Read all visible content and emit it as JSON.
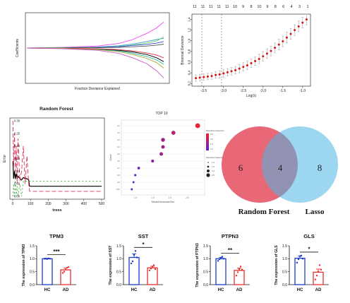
{
  "chart_data": [
    {
      "id": "lasso_coef",
      "type": "line",
      "xlabel": "Fraction Deviance Explained",
      "ylabel": "Coefficients",
      "xlim": [
        0,
        1
      ],
      "ylim": [
        -1,
        1
      ],
      "series": [
        {
          "color": "#ee44ee",
          "x": [
            0,
            0.25,
            0.5,
            0.65,
            0.75,
            0.85,
            0.92,
            0.97
          ],
          "y": [
            0,
            0.02,
            0.06,
            0.14,
            0.26,
            0.45,
            0.62,
            0.8
          ]
        },
        {
          "color": "#3aa0c8",
          "x": [
            0,
            0.25,
            0.5,
            0.65,
            0.75,
            0.85,
            0.92,
            0.97
          ],
          "y": [
            0,
            0.01,
            0.03,
            0.07,
            0.12,
            0.2,
            0.26,
            0.3
          ]
        },
        {
          "color": "#6ad06a",
          "x": [
            0,
            0.25,
            0.5,
            0.65,
            0.75,
            0.85,
            0.92,
            0.97
          ],
          "y": [
            0,
            0.01,
            0.02,
            0.05,
            0.09,
            0.15,
            0.22,
            0.34
          ]
        },
        {
          "color": "#2d4ad8",
          "x": [
            0,
            0.25,
            0.5,
            0.65,
            0.75,
            0.85,
            0.92,
            0.97
          ],
          "y": [
            0,
            0,
            0.02,
            0.04,
            0.08,
            0.11,
            0.15,
            0.2
          ]
        },
        {
          "color": "#555555",
          "x": [
            0,
            0.25,
            0.5,
            0.65,
            0.75,
            0.85,
            0.92,
            0.97
          ],
          "y": [
            0,
            0,
            0.01,
            0.02,
            0.04,
            0.06,
            0.09,
            0.12
          ]
        },
        {
          "color": "#000000",
          "x": [
            0,
            0.25,
            0.5,
            0.65,
            0.75,
            0.85,
            0.92,
            0.97
          ],
          "y": [
            0,
            -0.01,
            -0.03,
            -0.07,
            -0.12,
            -0.2,
            -0.3,
            -0.42
          ]
        },
        {
          "color": "#20b0a0",
          "x": [
            0,
            0.25,
            0.5,
            0.65,
            0.75,
            0.85,
            0.92,
            0.97
          ],
          "y": [
            0,
            -0.01,
            -0.04,
            -0.09,
            -0.16,
            -0.26,
            -0.37,
            -0.5
          ]
        },
        {
          "color": "#dd3344",
          "x": [
            0,
            0.25,
            0.5,
            0.65,
            0.75,
            0.85,
            0.92,
            0.97
          ],
          "y": [
            0,
            -0.01,
            -0.02,
            -0.05,
            -0.09,
            -0.15,
            -0.22,
            -0.3
          ]
        },
        {
          "color": "#aaaa33",
          "x": [
            0,
            0.25,
            0.5,
            0.65,
            0.75,
            0.85,
            0.92,
            0.97
          ],
          "y": [
            0,
            -0.01,
            -0.05,
            -0.11,
            -0.2,
            -0.32,
            -0.45,
            -0.62
          ]
        },
        {
          "color": "#cc55cc",
          "x": [
            0,
            0.25,
            0.5,
            0.65,
            0.75,
            0.85,
            0.92,
            0.97
          ],
          "y": [
            0,
            -0.02,
            -0.07,
            -0.16,
            -0.3,
            -0.48,
            -0.7,
            -0.92
          ]
        }
      ]
    },
    {
      "id": "lasso_cv",
      "type": "scatter",
      "xlabel": "Log(λ)",
      "ylabel": "Binomial Deviance",
      "xlim": [
        -3.8,
        -0.8
      ],
      "ylim": [
        0.15,
        1.5
      ],
      "x_ticks": [
        -3.5,
        -3.0,
        -2.5,
        -2.0,
        -1.5,
        -1.0
      ],
      "x_tick_labels": [
        "-3.5",
        "-3.0",
        "-2.5",
        "-2.0",
        "-1.5",
        "-1.0"
      ],
      "y_ticks": [
        0.2,
        0.4,
        0.6,
        0.8,
        1.0,
        1.2,
        1.4
      ],
      "y_tick_labels": [
        "0.2",
        "0.4",
        "0.6",
        "0.8",
        "1.0",
        "1.2",
        "1.4"
      ],
      "top_axis_labels": [
        "11",
        "11",
        "11",
        "11",
        "11",
        "10",
        "9",
        "8",
        "10",
        "9",
        "8",
        "6",
        "4",
        "3",
        "1"
      ],
      "vlines": [
        -3.55,
        -3.05
      ],
      "x": [
        -3.7,
        -3.6,
        -3.5,
        -3.4,
        -3.3,
        -3.2,
        -3.1,
        -3.0,
        -2.9,
        -2.8,
        -2.7,
        -2.6,
        -2.5,
        -2.4,
        -2.3,
        -2.2,
        -2.1,
        -2.0,
        -1.9,
        -1.8,
        -1.7,
        -1.6,
        -1.5,
        -1.4,
        -1.3,
        -1.2,
        -1.1,
        -1.0,
        -0.9
      ],
      "y": [
        0.3,
        0.31,
        0.32,
        0.33,
        0.34,
        0.36,
        0.37,
        0.39,
        0.41,
        0.43,
        0.45,
        0.48,
        0.51,
        0.54,
        0.58,
        0.62,
        0.66,
        0.71,
        0.76,
        0.81,
        0.87,
        0.93,
        0.99,
        1.06,
        1.13,
        1.2,
        1.27,
        1.34,
        1.4
      ],
      "err": [
        0.06,
        0.06,
        0.06,
        0.06,
        0.06,
        0.06,
        0.07,
        0.07,
        0.07,
        0.07,
        0.07,
        0.08,
        0.08,
        0.08,
        0.08,
        0.08,
        0.09,
        0.09,
        0.09,
        0.09,
        0.09,
        0.1,
        0.1,
        0.1,
        0.1,
        0.1,
        0.1,
        0.1,
        0.1
      ]
    },
    {
      "id": "random_forest",
      "type": "line",
      "title": "Random Forest",
      "xlabel": "trees",
      "ylabel": "Error",
      "xlim": [
        0,
        500
      ],
      "ylim": [
        0,
        0.3
      ],
      "x_ticks": [
        0,
        100,
        200,
        300,
        400,
        500
      ],
      "x_tick_labels": [
        "0",
        "100",
        "200",
        "300",
        "400",
        "500"
      ],
      "y_ticks": [
        0,
        0.05,
        0.1,
        0.15,
        0.2,
        0.25,
        0.3
      ],
      "y_tick_labels": [
        "0.00",
        "0.05",
        "0.10",
        "0.15",
        "0.20",
        "0.25",
        "0.30"
      ],
      "series": [
        {
          "color": "#000000",
          "dash": "",
          "x": [
            1,
            5,
            10,
            15,
            20,
            25,
            30,
            40,
            50,
            60,
            70,
            80,
            90,
            95,
            100,
            500
          ],
          "y": [
            0.14,
            0.07,
            0.1,
            0.07,
            0.09,
            0.07,
            0.08,
            0.07,
            0.065,
            0.075,
            0.07,
            0.07,
            0.065,
            0.04,
            0.04,
            0.04
          ]
        },
        {
          "color": "#dd3355",
          "dash": "6,3",
          "x": [
            1,
            5,
            10,
            15,
            20,
            25,
            30,
            40,
            50,
            60,
            70,
            80,
            90,
            95,
            100,
            500
          ],
          "y": [
            0.3,
            0.12,
            0.25,
            0.1,
            0.2,
            0.05,
            0.23,
            0.06,
            0.1,
            0.2,
            0.05,
            0.16,
            0.05,
            0.02,
            0.02,
            0.02
          ]
        },
        {
          "color": "#44aa44",
          "dash": "2,3",
          "x": [
            1,
            5,
            10,
            15,
            20,
            25,
            30,
            40,
            50,
            60,
            70,
            80,
            90,
            100,
            500
          ],
          "y": [
            0.0,
            0.05,
            0.0,
            0.07,
            0.0,
            0.04,
            0.0,
            0.05,
            0.0,
            0.06,
            0.06,
            0.06,
            0.06,
            0.06,
            0.06
          ]
        }
      ]
    },
    {
      "id": "top10",
      "type": "scatter",
      "title": "TOP 10",
      "xlabel": "MeanDecreaseGini",
      "ylabel": "Gene",
      "categories": [
        "G10",
        "G9",
        "G8",
        "G7",
        "G6",
        "G5",
        "G4",
        "G3",
        "G2",
        "G1"
      ],
      "x": [
        0.9,
        0.95,
        1.0,
        1.1,
        1.5,
        1.75,
        1.8,
        1.8,
        2.1,
        2.8
      ],
      "size": [
        0.5,
        0.5,
        0.6,
        0.8,
        1.0,
        1.3,
        1.3,
        1.5,
        1.6,
        2.0
      ],
      "legend_color_title": "MeanDecreaseGini",
      "legend_size_title": "MeanDecreaseGini",
      "xlim": [
        0.6,
        3.0
      ],
      "x_ticks": [
        1.0,
        1.5,
        2.0,
        2.5
      ],
      "x_tick_labels": [
        "1.0",
        "1.5",
        "2.0",
        "2.5"
      ],
      "size_legend_labels": [
        "1.0",
        "1.5",
        "2.0",
        "2.5"
      ],
      "color_legend_labels": [
        "2.5",
        "2.0",
        "1.5",
        "1.0"
      ],
      "colors": {
        "high": "#ee2233",
        "low": "#5522cc"
      }
    },
    {
      "id": "venn",
      "type": "venn",
      "sets": [
        {
          "name": "Random Forest",
          "unique": 6,
          "color": "#e86070"
        },
        {
          "name": "Lasso",
          "unique": 8,
          "color": "#4ab4e6"
        }
      ],
      "intersection": 4
    },
    {
      "id": "tpm3",
      "type": "bar",
      "title": "TPM3",
      "ylabel": "The expression of TPM3",
      "categories": [
        "HC",
        "AD"
      ],
      "values": [
        1.0,
        0.57
      ],
      "errors": [
        0.02,
        0.07
      ],
      "points": [
        [
          1.0,
          1.0,
          0.99,
          1.01,
          1.0
        ],
        [
          0.45,
          0.5,
          0.58,
          0.65,
          0.68
        ]
      ],
      "ylim": [
        0,
        1.5
      ],
      "y_ticks": [
        0.0,
        0.5,
        1.0,
        1.5
      ],
      "y_tick_labels": [
        "0.0",
        "0.5",
        "1.0",
        "1.5"
      ],
      "significance": "***",
      "colors": {
        "HC": "#1a3cc8",
        "AD": "#e83030"
      }
    },
    {
      "id": "sst",
      "type": "bar",
      "title": "SST",
      "ylabel": "The expression of SST",
      "categories": [
        "HC",
        "AD"
      ],
      "values": [
        1.05,
        0.65
      ],
      "errors": [
        0.14,
        0.06
      ],
      "points": [
        [
          0.82,
          0.9,
          1.15,
          1.3,
          1.05
        ],
        [
          0.55,
          0.62,
          0.7,
          0.75,
          0.6
        ]
      ],
      "ylim": [
        0,
        1.5
      ],
      "y_ticks": [
        0.0,
        0.5,
        1.0,
        1.5
      ],
      "y_tick_labels": [
        "0.0",
        "0.5",
        "1.0",
        "1.5"
      ],
      "significance": "*",
      "colors": {
        "HC": "#1a3cc8",
        "AD": "#e83030"
      }
    },
    {
      "id": "ptpn3",
      "type": "bar",
      "title": "PTPN3",
      "ylabel": "The expression of PTPN3",
      "categories": [
        "HC",
        "AD"
      ],
      "values": [
        1.0,
        0.55
      ],
      "errors": [
        0.05,
        0.09
      ],
      "points": [
        [
          0.92,
          0.98,
          1.04,
          1.08,
          1.0
        ],
        [
          0.35,
          0.48,
          0.6,
          0.7,
          0.58
        ]
      ],
      "ylim": [
        0,
        1.5
      ],
      "y_ticks": [
        0.0,
        0.5,
        1.0,
        1.5
      ],
      "y_tick_labels": [
        "0.0",
        "0.5",
        "1.0",
        "1.5"
      ],
      "significance": "**",
      "colors": {
        "HC": "#1a3cc8",
        "AD": "#e83030"
      }
    },
    {
      "id": "gls",
      "type": "bar",
      "title": "GLS",
      "ylabel": "The expression of GLS",
      "categories": [
        "HC",
        "AD"
      ],
      "values": [
        1.02,
        0.48
      ],
      "errors": [
        0.08,
        0.12
      ],
      "points": [
        [
          0.85,
          0.98,
          1.1,
          1.12,
          1.0
        ],
        [
          0.2,
          0.35,
          0.5,
          0.75,
          0.58
        ]
      ],
      "ylim": [
        0,
        1.5
      ],
      "y_ticks": [
        0.0,
        0.5,
        1.0,
        1.5
      ],
      "y_tick_labels": [
        "0.0",
        "0.5",
        "1.0",
        "1.5"
      ],
      "significance": "*",
      "colors": {
        "HC": "#1a3cc8",
        "AD": "#e83030"
      }
    }
  ]
}
